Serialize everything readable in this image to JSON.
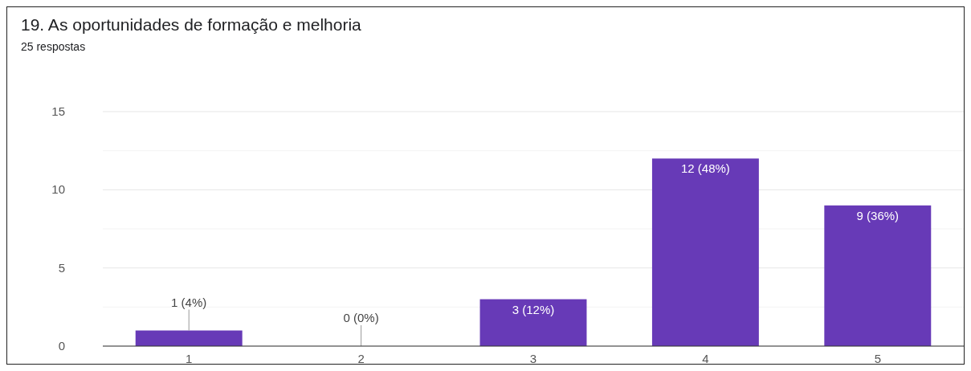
{
  "chart_data": {
    "type": "bar",
    "title": "19. As oportunidades de formação e melhoria",
    "subtitle": "25 respostas",
    "categories": [
      "1",
      "2",
      "3",
      "4",
      "5"
    ],
    "values": [
      1,
      0,
      3,
      12,
      9
    ],
    "value_labels": [
      "1 (4%)",
      "0 (0%)",
      "3 (12%)",
      "12 (48%)",
      "9 (36%)"
    ],
    "color": "#673ab7",
    "ylim": [
      0,
      15
    ],
    "yticks": [
      0,
      {
        "value": 2.5,
        "label": null
      },
      5,
      {
        "value": 7.5,
        "label": null
      },
      10,
      {
        "value": 12.5,
        "label": null
      },
      15
    ],
    "grid": true
  }
}
